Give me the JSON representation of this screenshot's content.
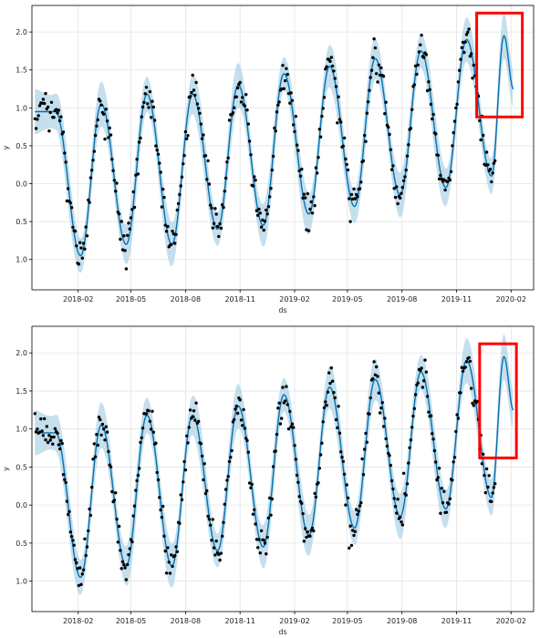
{
  "chart_data": [
    {
      "type": "line",
      "xlabel": "ds",
      "ylabel": "y",
      "xlim": [
        "2017-11-15",
        "2020-03-10"
      ],
      "ylim": [
        -1.4,
        2.35
      ],
      "x_ticks": [
        "2018-02",
        "2018-05",
        "2018-08",
        "2018-11",
        "2019-02",
        "2019-05",
        "2019-08",
        "2019-11",
        "2020-02"
      ],
      "x_tick_dates": [
        "2018-02-01",
        "2018-05-01",
        "2018-08-01",
        "2018-11-01",
        "2019-02-01",
        "2019-05-01",
        "2019-08-01",
        "2019-11-01",
        "2020-02-01"
      ],
      "y_ticks": [
        2.0,
        1.5,
        1.0,
        0.5,
        0.0,
        -0.5,
        -1.0
      ],
      "y_tick_labels": [
        "2.0",
        "1.5",
        "1.0",
        "0.5",
        "0.0",
        "0.5",
        "1.0"
      ],
      "grid": true,
      "series": [
        {
          "role": "forecast",
          "color": "#0072B2",
          "peaks": [
            {
              "date": "2017-12-25",
              "value": 0.95
            },
            {
              "date": "2018-03-12",
              "value": 1.05
            },
            {
              "date": "2018-05-28",
              "value": 1.18
            },
            {
              "date": "2018-08-13",
              "value": 1.18
            },
            {
              "date": "2018-10-29",
              "value": 1.3
            },
            {
              "date": "2019-01-14",
              "value": 1.45
            },
            {
              "date": "2019-04-01",
              "value": 1.55
            },
            {
              "date": "2019-06-17",
              "value": 1.65
            },
            {
              "date": "2019-09-02",
              "value": 1.75
            },
            {
              "date": "2019-11-18",
              "value": 1.9
            },
            {
              "date": "2020-01-20",
              "value": 1.95
            }
          ],
          "troughs": [
            {
              "date": "2018-02-05",
              "value": -0.95
            },
            {
              "date": "2018-04-23",
              "value": -0.8
            },
            {
              "date": "2018-07-09",
              "value": -0.8
            },
            {
              "date": "2018-09-24",
              "value": -0.6
            },
            {
              "date": "2018-12-10",
              "value": -0.55
            },
            {
              "date": "2019-02-25",
              "value": -0.4
            },
            {
              "date": "2019-05-13",
              "value": -0.3
            },
            {
              "date": "2019-07-29",
              "value": -0.15
            },
            {
              "date": "2019-10-14",
              "value": -0.05
            },
            {
              "date": "2019-12-30",
              "value": 0.1
            }
          ],
          "end": {
            "date": "2020-02-05",
            "value": 1.25
          },
          "uncertainty_band_color": "#9ecae1"
        },
        {
          "role": "observations",
          "color": "#000000",
          "date_range": [
            "2017-11-20",
            "2020-01-05"
          ]
        }
      ],
      "highlight_box": {
        "color": "#ff0000",
        "date_range": [
          "2019-12-05",
          "2020-02-20"
        ],
        "y_range": [
          0.88,
          2.25
        ]
      }
    },
    {
      "type": "line",
      "xlabel": "ds",
      "ylabel": "y",
      "xlim": [
        "2017-11-15",
        "2020-03-10"
      ],
      "ylim": [
        -1.4,
        2.35
      ],
      "x_ticks": [
        "2018-02",
        "2018-05",
        "2018-08",
        "2018-11",
        "2019-02",
        "2019-05",
        "2019-08",
        "2019-11",
        "2020-02"
      ],
      "x_tick_dates": [
        "2018-02-01",
        "2018-05-01",
        "2018-08-01",
        "2018-11-01",
        "2019-02-01",
        "2019-05-01",
        "2019-08-01",
        "2019-11-01",
        "2020-02-01"
      ],
      "y_ticks": [
        2.0,
        1.5,
        1.0,
        0.5,
        0.0,
        -0.5,
        -1.0
      ],
      "y_tick_labels": [
        "2.0",
        "1.5",
        "1.0",
        "0.5",
        "0.0",
        "0.5",
        "1.0"
      ],
      "grid": true,
      "series": [
        {
          "role": "forecast",
          "color": "#0072B2",
          "peaks": [
            {
              "date": "2017-12-25",
              "value": 0.95
            },
            {
              "date": "2018-03-12",
              "value": 1.05
            },
            {
              "date": "2018-05-28",
              "value": 1.18
            },
            {
              "date": "2018-08-13",
              "value": 1.18
            },
            {
              "date": "2018-10-29",
              "value": 1.3
            },
            {
              "date": "2019-01-14",
              "value": 1.45
            },
            {
              "date": "2019-04-01",
              "value": 1.55
            },
            {
              "date": "2019-06-17",
              "value": 1.65
            },
            {
              "date": "2019-09-02",
              "value": 1.75
            },
            {
              "date": "2019-11-18",
              "value": 1.9
            },
            {
              "date": "2020-01-20",
              "value": 1.95
            }
          ],
          "troughs": [
            {
              "date": "2018-02-05",
              "value": -0.95
            },
            {
              "date": "2018-04-23",
              "value": -0.8
            },
            {
              "date": "2018-07-09",
              "value": -0.8
            },
            {
              "date": "2018-09-24",
              "value": -0.6
            },
            {
              "date": "2018-12-10",
              "value": -0.55
            },
            {
              "date": "2019-02-25",
              "value": -0.4
            },
            {
              "date": "2019-05-13",
              "value": -0.3
            },
            {
              "date": "2019-07-29",
              "value": -0.15
            },
            {
              "date": "2019-10-14",
              "value": -0.05
            },
            {
              "date": "2019-12-30",
              "value": 0.1
            }
          ],
          "end": {
            "date": "2020-02-05",
            "value": 1.25
          },
          "uncertainty_band_color": "#9ecae1"
        },
        {
          "role": "observations",
          "color": "#000000",
          "date_range": [
            "2017-11-20",
            "2020-01-05"
          ]
        }
      ],
      "highlight_box": {
        "color": "#ff0000",
        "date_range": [
          "2019-12-10",
          "2020-02-10"
        ],
        "y_range": [
          0.62,
          2.12
        ]
      }
    }
  ]
}
